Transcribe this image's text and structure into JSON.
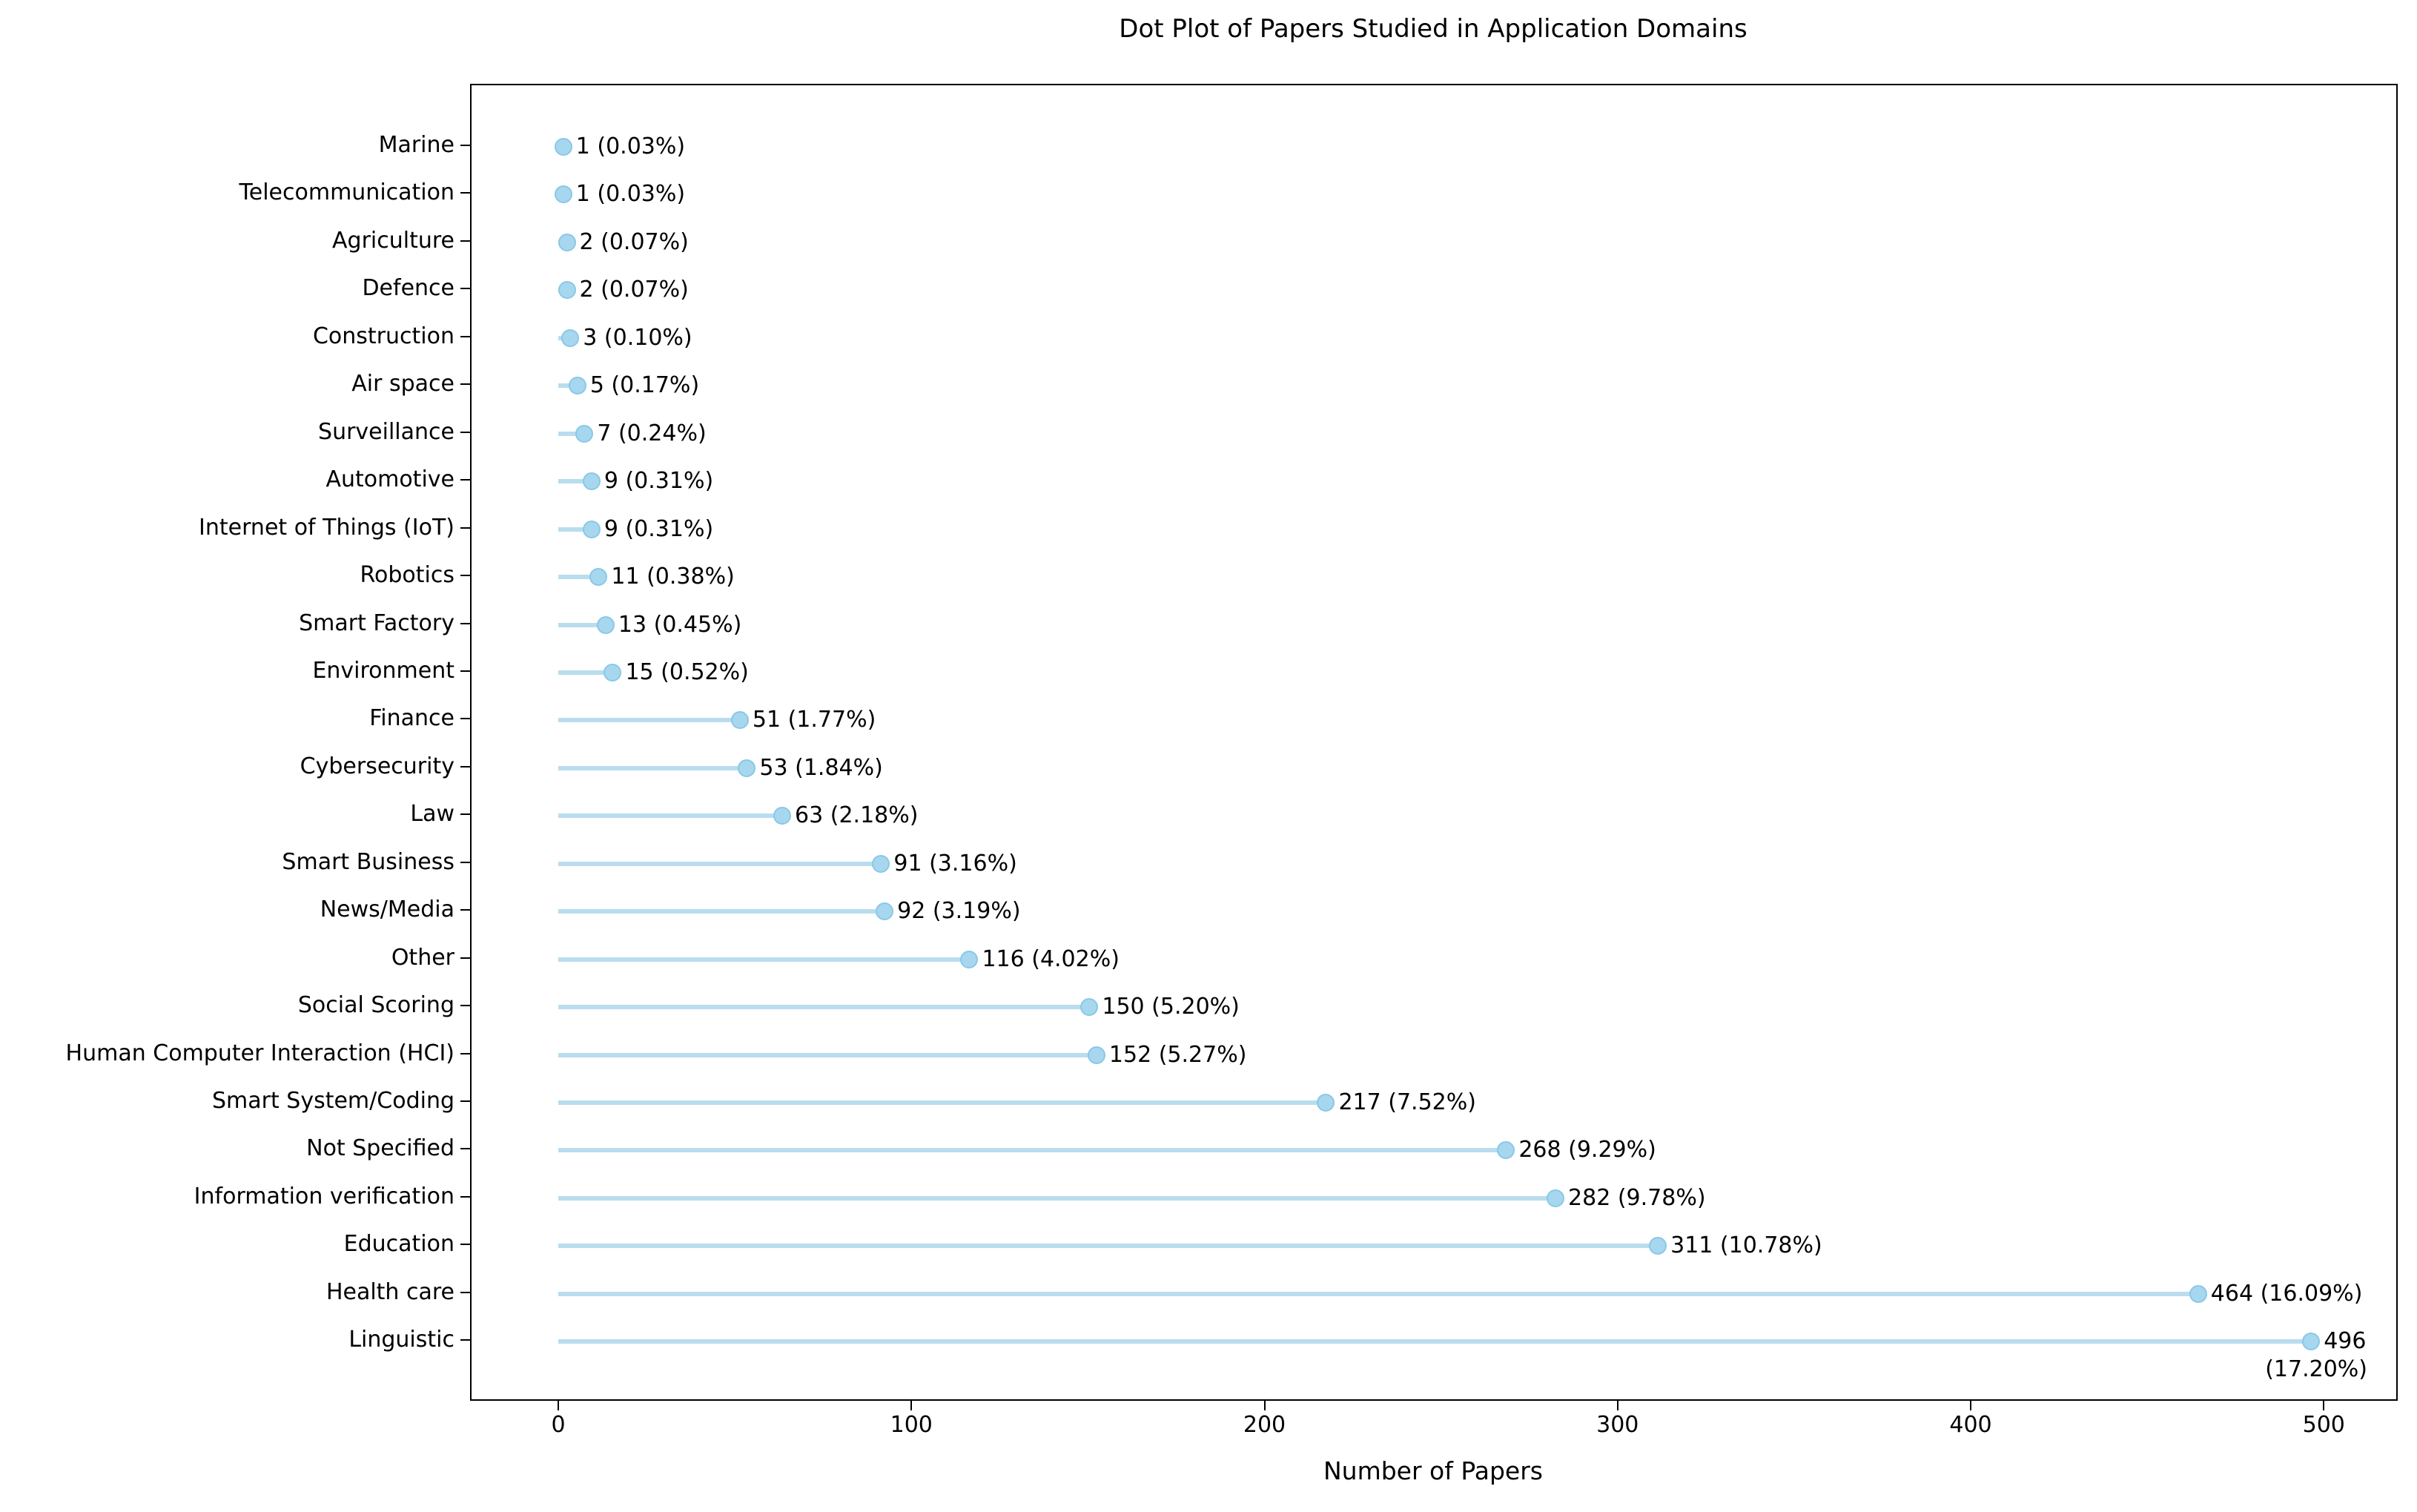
{
  "title": "Dot Plot of Papers Studied in Application Domains",
  "xlabel": "Number of Papers",
  "chart_data": {
    "type": "scatter",
    "subtype": "dot-plot-lollipop",
    "orientation": "horizontal",
    "title": "Dot Plot of Papers Studied in Application Domains",
    "xlabel": "Number of Papers",
    "ylabel": "",
    "xlim": [
      -25,
      521
    ],
    "x_ticks": [
      0,
      100,
      200,
      300,
      400,
      500
    ],
    "grid": false,
    "legend": false,
    "colors": {
      "stem": "#B9DDEE",
      "dot_fill": "#A7D7EF",
      "dot_edge": "#89C8E7",
      "text": "#000000",
      "spine": "#000000"
    },
    "categories": [
      "Marine",
      "Telecommunication",
      "Agriculture",
      "Defence",
      "Construction",
      "Air space",
      "Surveillance",
      "Automotive",
      "Internet of Things (IoT)",
      "Robotics",
      "Smart Factory",
      "Environment",
      "Finance",
      "Cybersecurity",
      "Law",
      "Smart Business",
      "News/Media",
      "Other",
      "Social Scoring",
      "Human Computer Interaction (HCI)",
      "Smart System/Coding",
      "Not Specified",
      "Information verification",
      "Education",
      "Health care",
      "Linguistic"
    ],
    "values": [
      1,
      1,
      2,
      2,
      3,
      5,
      7,
      9,
      9,
      11,
      13,
      15,
      51,
      53,
      63,
      91,
      92,
      116,
      150,
      152,
      217,
      268,
      282,
      311,
      464,
      496
    ],
    "rows": [
      {
        "label": "Marine",
        "value": 1,
        "annotation": "1 (0.03%)"
      },
      {
        "label": "Telecommunication",
        "value": 1,
        "annotation": "1 (0.03%)"
      },
      {
        "label": "Agriculture",
        "value": 2,
        "annotation": "2 (0.07%)"
      },
      {
        "label": "Defence",
        "value": 2,
        "annotation": "2 (0.07%)"
      },
      {
        "label": "Construction",
        "value": 3,
        "annotation": "3 (0.10%)"
      },
      {
        "label": "Air space",
        "value": 5,
        "annotation": "5 (0.17%)"
      },
      {
        "label": "Surveillance",
        "value": 7,
        "annotation": "7 (0.24%)"
      },
      {
        "label": "Automotive",
        "value": 9,
        "annotation": "9 (0.31%)"
      },
      {
        "label": "Internet of Things (IoT)",
        "value": 9,
        "annotation": "9 (0.31%)"
      },
      {
        "label": "Robotics",
        "value": 11,
        "annotation": "11 (0.38%)"
      },
      {
        "label": "Smart Factory",
        "value": 13,
        "annotation": "13 (0.45%)"
      },
      {
        "label": "Environment",
        "value": 15,
        "annotation": "15 (0.52%)"
      },
      {
        "label": "Finance",
        "value": 51,
        "annotation": "51 (1.77%)"
      },
      {
        "label": "Cybersecurity",
        "value": 53,
        "annotation": "53 (1.84%)"
      },
      {
        "label": "Law",
        "value": 63,
        "annotation": "63 (2.18%)"
      },
      {
        "label": "Smart Business",
        "value": 91,
        "annotation": "91 (3.16%)"
      },
      {
        "label": "News/Media",
        "value": 92,
        "annotation": "92 (3.19%)"
      },
      {
        "label": "Other",
        "value": 116,
        "annotation": "116 (4.02%)"
      },
      {
        "label": "Social Scoring",
        "value": 150,
        "annotation": "150 (5.20%)"
      },
      {
        "label": "Human Computer Interaction (HCI)",
        "value": 152,
        "annotation": "152 (5.27%)"
      },
      {
        "label": "Smart System/Coding",
        "value": 217,
        "annotation": "217 (7.52%)"
      },
      {
        "label": "Not Specified",
        "value": 268,
        "annotation": "268 (9.29%)"
      },
      {
        "label": "Information verification",
        "value": 282,
        "annotation": "282 (9.78%)"
      },
      {
        "label": "Education",
        "value": 311,
        "annotation": "311 (10.78%)"
      },
      {
        "label": "Health care",
        "value": 464,
        "annotation": "464 (16.09%)"
      },
      {
        "label": "Linguistic",
        "value": 496,
        "annotation": "496",
        "annotation_line2": "(17.20%)"
      }
    ]
  }
}
